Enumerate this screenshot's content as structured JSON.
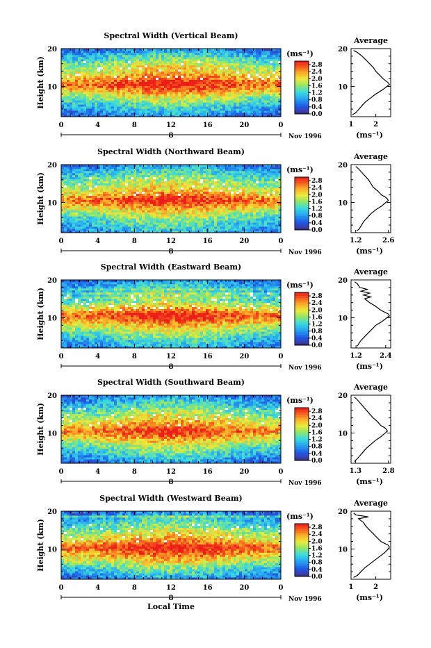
{
  "chart_data": [
    {
      "type": "heatmap",
      "title": "Spectral Width (Vertical Beam)",
      "xlabel": "",
      "ylabel": "Height (km)",
      "x_ticks": [
        "0",
        "4",
        "8",
        "12",
        "16",
        "20",
        "0"
      ],
      "y_ticks": [
        "20",
        "10"
      ],
      "xlim": [
        0,
        24
      ],
      "ylim": [
        2,
        20
      ],
      "date_label": "Nov 1996",
      "day_label": "8",
      "colorbar": {
        "unit": "(ms⁻¹)",
        "ticks": [
          "2.8",
          "2.4",
          "2.0",
          "1.6",
          "1.2",
          "0.8",
          "0.4",
          "0.0"
        ],
        "range": [
          0.0,
          3.0
        ]
      },
      "profile": {
        "title": "Average",
        "xlabel": "(ms⁻¹)",
        "x_ticks": [
          "1",
          "2"
        ],
        "xlim": [
          1.0,
          2.6
        ],
        "y_ticks": [
          "20",
          "10"
        ],
        "height": [
          2.5,
          3,
          4,
          5,
          6,
          7,
          8,
          9,
          10,
          10.5,
          11,
          11.5,
          12,
          13,
          14,
          15,
          16,
          17,
          18,
          19,
          19.5
        ],
        "value": [
          1.05,
          1.18,
          1.32,
          1.45,
          1.6,
          1.8,
          2.0,
          2.25,
          2.45,
          2.55,
          2.5,
          2.4,
          2.3,
          2.15,
          2.0,
          1.9,
          1.75,
          1.6,
          1.45,
          1.25,
          1.1
        ]
      }
    },
    {
      "type": "heatmap",
      "title": "Spectral Width (Northward Beam)",
      "xlabel": "",
      "ylabel": "Height (km)",
      "x_ticks": [
        "0",
        "4",
        "8",
        "12",
        "16",
        "20",
        "0"
      ],
      "y_ticks": [
        "20",
        "10"
      ],
      "xlim": [
        0,
        24
      ],
      "ylim": [
        2,
        20
      ],
      "date_label": "Nov 1996",
      "day_label": "8",
      "colorbar": {
        "unit": "(ms⁻¹)",
        "ticks": [
          "2.8",
          "2.4",
          "2.0",
          "1.6",
          "1.2",
          "0.8",
          "0.4",
          "0.0"
        ],
        "range": [
          0.0,
          3.0
        ]
      },
      "profile": {
        "title": "Average",
        "xlabel": "(ms⁻¹)",
        "x_ticks": [
          "1.2",
          "2.6"
        ],
        "xlim": [
          1.0,
          2.7
        ],
        "y_ticks": [
          "20",
          "10"
        ],
        "height": [
          2.5,
          3,
          4,
          5,
          6,
          7,
          8,
          9,
          10,
          10.5,
          11,
          11.5,
          12,
          13,
          14,
          15,
          16,
          17,
          18,
          19,
          19.5
        ],
        "value": [
          1.25,
          1.35,
          1.45,
          1.55,
          1.7,
          1.85,
          2.05,
          2.3,
          2.5,
          2.6,
          2.55,
          2.45,
          2.3,
          2.15,
          1.95,
          1.85,
          1.75,
          1.6,
          1.45,
          1.3,
          1.2
        ]
      }
    },
    {
      "type": "heatmap",
      "title": "Spectral Width (Eastward Beam)",
      "xlabel": "",
      "ylabel": "Height (km)",
      "x_ticks": [
        "0",
        "4",
        "8",
        "12",
        "16",
        "20",
        "0"
      ],
      "y_ticks": [
        "20",
        "10"
      ],
      "xlim": [
        0,
        24
      ],
      "ylim": [
        2,
        20
      ],
      "date_label": "Nov 1996",
      "day_label": "8",
      "colorbar": {
        "unit": "(ms⁻¹)",
        "ticks": [
          "2.8",
          "2.4",
          "2.0",
          "1.6",
          "1.2",
          "0.8",
          "0.4",
          "0.0"
        ],
        "range": [
          0.0,
          3.0
        ]
      },
      "profile": {
        "title": "Average",
        "xlabel": "(ms⁻¹)",
        "x_ticks": [
          "1.2",
          "2.4"
        ],
        "xlim": [
          1.0,
          2.6
        ],
        "y_ticks": [
          "20",
          "10"
        ],
        "height": [
          2.5,
          3,
          4,
          5,
          6,
          7,
          8,
          9,
          10,
          10.5,
          11,
          11.5,
          12,
          13,
          14,
          15,
          15.5,
          16,
          16.5,
          17,
          17.5,
          18,
          19,
          19.5
        ],
        "value": [
          1.25,
          1.3,
          1.4,
          1.55,
          1.7,
          1.85,
          2.0,
          2.25,
          2.45,
          2.55,
          2.5,
          2.35,
          2.2,
          2.0,
          1.75,
          1.55,
          1.8,
          1.5,
          1.75,
          1.4,
          1.65,
          1.35,
          1.25,
          1.15
        ]
      }
    },
    {
      "type": "heatmap",
      "title": "Spectral Width (Southward Beam)",
      "xlabel": "",
      "ylabel": "Height (km)",
      "x_ticks": [
        "0",
        "4",
        "8",
        "12",
        "16",
        "20",
        "0"
      ],
      "y_ticks": [
        "20",
        "10"
      ],
      "xlim": [
        0,
        24
      ],
      "ylim": [
        2,
        20
      ],
      "date_label": "Nov 1996",
      "day_label": "8",
      "colorbar": {
        "unit": "(ms⁻¹)",
        "ticks": [
          "2.8",
          "2.4",
          "2.0",
          "1.6",
          "1.2",
          "0.8",
          "0.4",
          "0.0"
        ],
        "range": [
          0.0,
          3.0
        ]
      },
      "profile": {
        "title": "Average",
        "xlabel": "(ms⁻¹)",
        "x_ticks": [
          "1.3",
          "2.8"
        ],
        "xlim": [
          1.1,
          2.9
        ],
        "y_ticks": [
          "20",
          "10"
        ],
        "height": [
          2.5,
          3,
          4,
          5,
          6,
          7,
          8,
          9,
          10,
          10.5,
          11,
          11.5,
          12,
          13,
          14,
          15,
          16,
          17,
          18,
          19,
          19.5
        ],
        "value": [
          1.25,
          1.35,
          1.5,
          1.65,
          1.8,
          2.0,
          2.2,
          2.45,
          2.65,
          2.75,
          2.7,
          2.6,
          2.45,
          2.3,
          2.1,
          1.95,
          1.8,
          1.65,
          1.5,
          1.35,
          1.25
        ]
      }
    },
    {
      "type": "heatmap",
      "title": "Spectral Width (Westward Beam)",
      "xlabel": "Local Time",
      "ylabel": "Height (km)",
      "x_ticks": [
        "0",
        "4",
        "8",
        "12",
        "16",
        "20",
        "0"
      ],
      "y_ticks": [
        "20",
        "10"
      ],
      "xlim": [
        0,
        24
      ],
      "ylim": [
        2,
        20
      ],
      "date_label": "Nov 1996",
      "day_label": "8",
      "colorbar": {
        "unit": "(ms⁻¹)",
        "ticks": [
          "2.8",
          "2.4",
          "2.0",
          "1.6",
          "1.2",
          "0.8",
          "0.4",
          "0.0"
        ],
        "range": [
          0.0,
          3.0
        ]
      },
      "profile": {
        "title": "Average",
        "xlabel": "(ms⁻¹)",
        "x_ticks": [
          "1",
          "2"
        ],
        "xlim": [
          1.0,
          2.6
        ],
        "y_ticks": [
          "20",
          "10"
        ],
        "height": [
          2.5,
          3,
          4,
          5,
          6,
          7,
          8,
          9,
          10,
          10.5,
          11,
          11.5,
          12,
          13,
          14,
          15,
          16,
          17,
          18,
          18.5,
          19,
          19.5
        ],
        "value": [
          1.1,
          1.25,
          1.4,
          1.55,
          1.75,
          1.95,
          2.15,
          2.35,
          2.5,
          2.55,
          2.5,
          2.35,
          2.2,
          2.05,
          1.9,
          1.75,
          1.6,
          1.5,
          1.3,
          1.7,
          1.2,
          1.1
        ]
      }
    }
  ]
}
